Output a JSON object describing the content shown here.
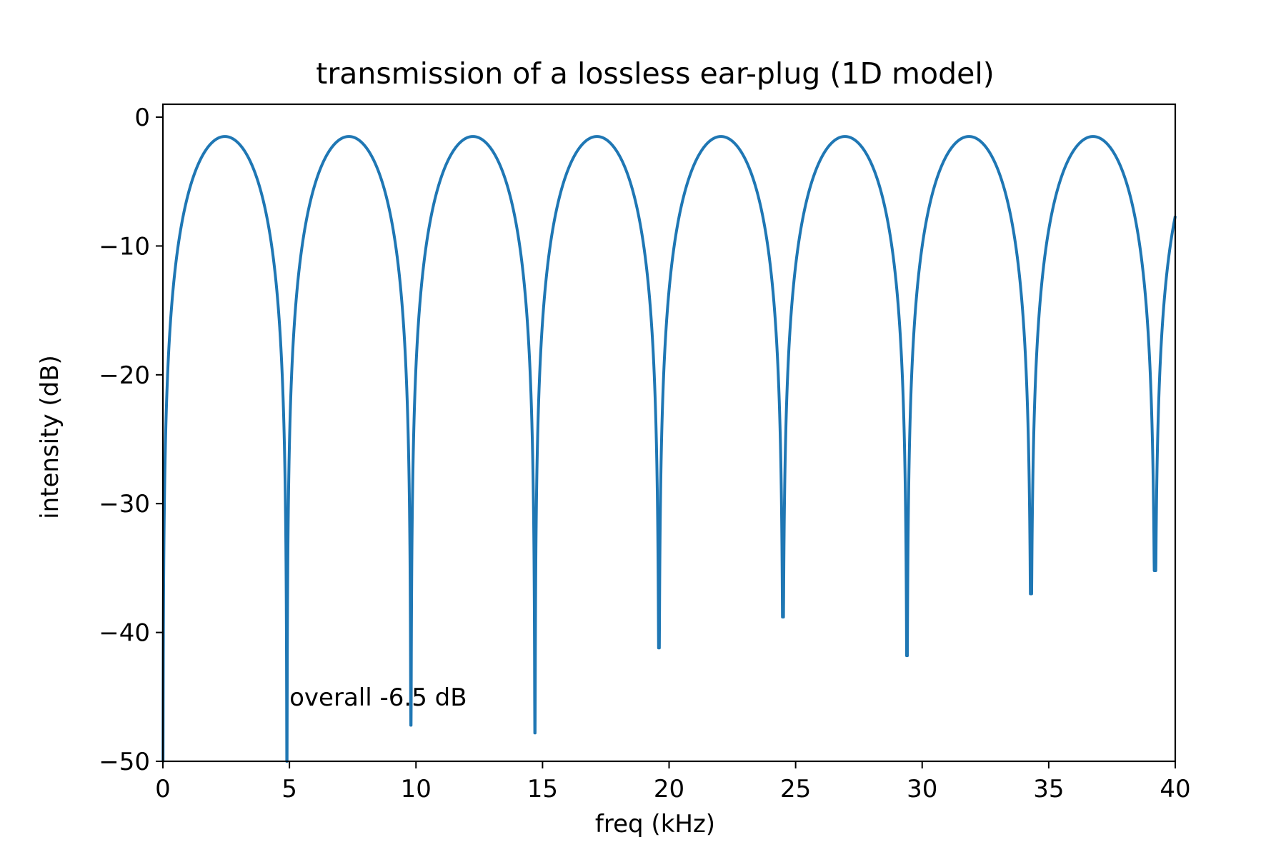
{
  "chart_data": {
    "type": "line",
    "title": "transmission of a lossless ear-plug (1D model)",
    "xlabel": "freq (kHz)",
    "ylabel": "intensity (dB)",
    "xlim": [
      0,
      40
    ],
    "ylim": [
      -50,
      1
    ],
    "xticks": [
      0,
      5,
      10,
      15,
      20,
      25,
      30,
      35,
      40
    ],
    "yticks": [
      0,
      -10,
      -20,
      -30,
      -40,
      -50
    ],
    "xtick_labels": [
      "0",
      "5",
      "10",
      "15",
      "20",
      "25",
      "30",
      "35",
      "40"
    ],
    "ytick_labels": [
      "0",
      "−10",
      "−20",
      "−30",
      "−40",
      "−50"
    ],
    "grid": false,
    "annotation": {
      "text": "overall -6.5 dB",
      "x": 5.0,
      "y": -45
    },
    "series": [
      {
        "color": "#1f77b4",
        "peak_db": -1.5,
        "period_khz": 4.9,
        "notches": [
          {
            "x": 0.0,
            "y": -50
          },
          {
            "x": 4.9,
            "y": -50
          },
          {
            "x": 9.8,
            "y": -47.2
          },
          {
            "x": 14.7,
            "y": -47.8
          },
          {
            "x": 19.6,
            "y": -41.2
          },
          {
            "x": 24.5,
            "y": -38.8
          },
          {
            "x": 29.4,
            "y": -41.8
          },
          {
            "x": 34.3,
            "y": -37.0
          },
          {
            "x": 39.2,
            "y": -35.2
          }
        ]
      }
    ]
  }
}
